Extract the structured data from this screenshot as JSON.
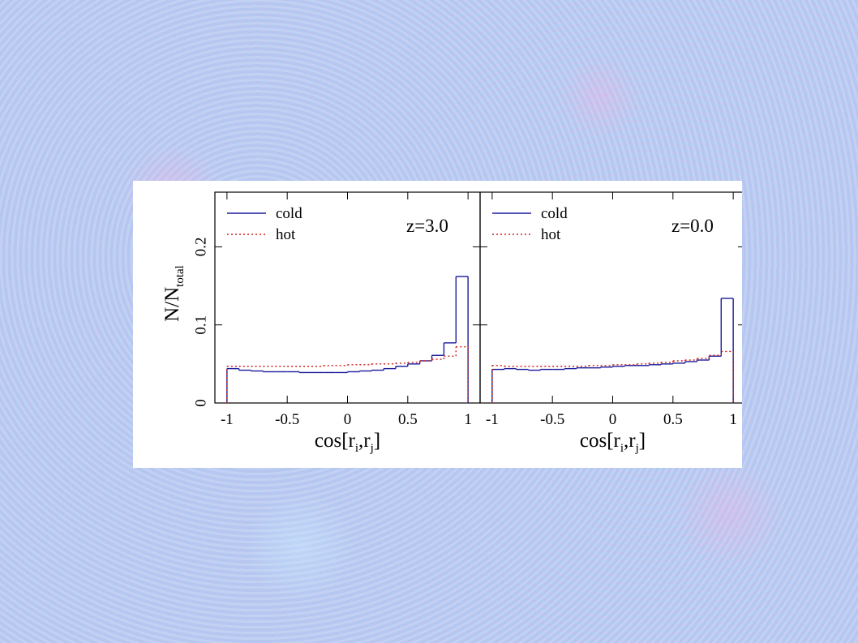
{
  "chart_data": [
    {
      "type": "histogram",
      "annotation": "z=3.0",
      "legend": "upper left",
      "xlabel": [
        "cos[r",
        "i",
        ",r",
        "j",
        "]"
      ],
      "ylabel": [
        "N/N",
        "total"
      ],
      "bins": [
        -1,
        -0.9,
        -0.8,
        -0.7,
        -0.6,
        -0.5,
        -0.4,
        -0.3,
        -0.2,
        -0.1,
        0,
        0.1,
        0.2,
        0.3,
        0.4,
        0.5,
        0.6,
        0.7,
        0.8,
        0.9,
        1
      ],
      "series": [
        {
          "name": "cold",
          "color": "#1a1a9c",
          "dash": "none",
          "values": [
            0.044,
            0.042,
            0.041,
            0.04,
            0.04,
            0.04,
            0.039,
            0.039,
            0.039,
            0.039,
            0.04,
            0.041,
            0.042,
            0.044,
            0.047,
            0.05,
            0.054,
            0.061,
            0.077,
            0.162
          ]
        },
        {
          "name": "hot",
          "color": "#d0201a",
          "dash": "2 3",
          "values": [
            0.047,
            0.047,
            0.047,
            0.047,
            0.047,
            0.047,
            0.047,
            0.047,
            0.048,
            0.048,
            0.049,
            0.049,
            0.05,
            0.05,
            0.051,
            0.052,
            0.054,
            0.056,
            0.06,
            0.072
          ]
        }
      ],
      "xlim": [
        -1.1,
        1.1
      ],
      "ylim": [
        0,
        0.27
      ],
      "xticks": [
        -1,
        -0.5,
        0,
        0.5,
        1
      ],
      "yticks": [
        0,
        0.1,
        0.2
      ]
    },
    {
      "type": "histogram",
      "annotation": "z=0.0",
      "legend": "upper left",
      "xlabel": [
        "cos[r",
        "i",
        ",r",
        "j",
        "]"
      ],
      "bins": [
        -1,
        -0.9,
        -0.8,
        -0.7,
        -0.6,
        -0.5,
        -0.4,
        -0.3,
        -0.2,
        -0.1,
        0,
        0.1,
        0.2,
        0.3,
        0.4,
        0.5,
        0.6,
        0.7,
        0.8,
        0.9,
        1
      ],
      "series": [
        {
          "name": "cold",
          "color": "#1a1a9c",
          "dash": "none",
          "values": [
            0.043,
            0.044,
            0.043,
            0.042,
            0.043,
            0.043,
            0.044,
            0.045,
            0.045,
            0.046,
            0.047,
            0.048,
            0.048,
            0.049,
            0.05,
            0.051,
            0.053,
            0.055,
            0.06,
            0.134
          ]
        },
        {
          "name": "hot",
          "color": "#d0201a",
          "dash": "2 3",
          "values": [
            0.048,
            0.047,
            0.047,
            0.047,
            0.047,
            0.047,
            0.047,
            0.047,
            0.048,
            0.048,
            0.049,
            0.049,
            0.05,
            0.051,
            0.052,
            0.054,
            0.055,
            0.057,
            0.061,
            0.066
          ]
        }
      ],
      "xlim": [
        -1.1,
        1.1
      ],
      "ylim": [
        0,
        0.27
      ],
      "xticks": [
        -1,
        -0.5,
        0,
        0.5,
        1
      ],
      "yticks": [
        0,
        0.1,
        0.2
      ]
    }
  ]
}
